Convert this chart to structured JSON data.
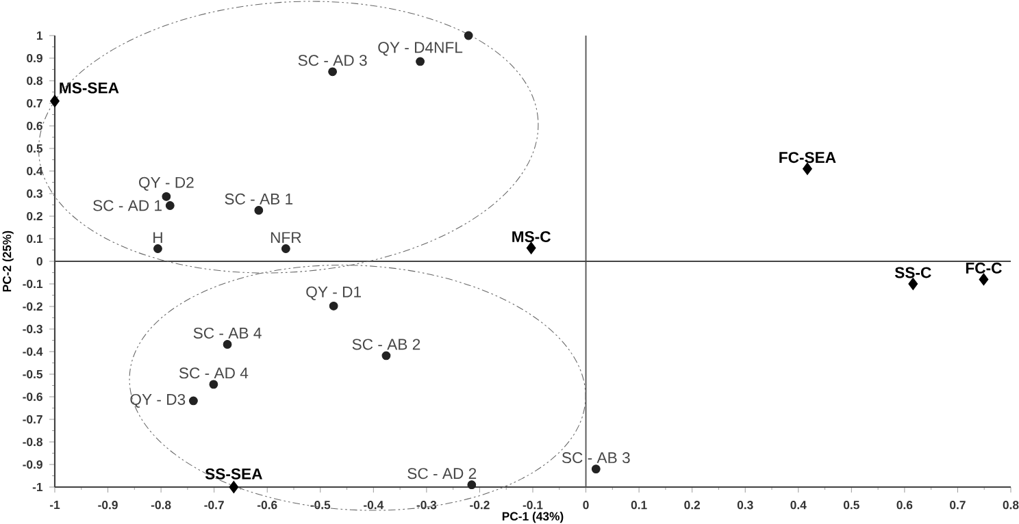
{
  "chart_data": {
    "type": "scatter",
    "xlabel": "PC-1 (43%)",
    "ylabel": "PC-2 (25%)",
    "xlim": [
      -1,
      0.8
    ],
    "ylim": [
      -1,
      1
    ],
    "xticks": [
      -1,
      -0.9,
      -0.8,
      -0.7,
      -0.6,
      -0.5,
      -0.4,
      -0.3,
      -0.2,
      -0.1,
      0,
      0.1,
      0.2,
      0.3,
      0.4,
      0.5,
      0.6,
      0.7,
      0.8
    ],
    "yticks": [
      -1,
      -0.9,
      -0.8,
      -0.7,
      -0.6,
      -0.5,
      -0.4,
      -0.3,
      -0.2,
      -0.1,
      0,
      0.1,
      0.2,
      0.3,
      0.4,
      0.5,
      0.6,
      0.7,
      0.8,
      0.9,
      1
    ],
    "grid": false,
    "ref_lines": [
      {
        "axis": "x",
        "value": 0,
        "color": "#555555"
      },
      {
        "axis": "y",
        "value": 0,
        "color": "#444444"
      }
    ],
    "series": [
      {
        "marker": "circle",
        "color": "#222222",
        "x": [
          -0.477,
          -0.312,
          -0.221,
          -0.79,
          -0.783,
          -0.616,
          -0.565,
          -0.806,
          -0.475,
          -0.675,
          -0.376,
          -0.701,
          -0.739,
          -0.215,
          0.019
        ],
        "values": [
          0.84,
          0.885,
          1.0,
          0.287,
          0.247,
          0.226,
          0.056,
          0.056,
          -0.198,
          -0.368,
          -0.418,
          -0.545,
          -0.618,
          -0.99,
          -0.92
        ],
        "value_labels": [
          "SC - AD 3",
          "QY - D4NFL",
          null,
          "QY - D2",
          "SC - AD 1",
          "SC - AB 1",
          "NFR",
          "H",
          "QY - D1",
          "SC - AB 4",
          "SC - AB 2",
          "SC - AD 4",
          "QY - D3",
          "SC - AD 2",
          "SC - AB 3"
        ]
      },
      {
        "marker": "diamond",
        "color": "#000000",
        "x": [
          -1.0,
          -0.663,
          -0.103,
          0.417,
          0.616,
          0.749
        ],
        "values": [
          0.71,
          -1.0,
          0.059,
          0.41,
          -0.1,
          -0.08
        ],
        "value_labels": [
          "MS-SEA",
          "SS-SEA",
          "MS-C",
          "FC-SEA",
          "SS-C",
          "FC-C"
        ]
      }
    ]
  }
}
